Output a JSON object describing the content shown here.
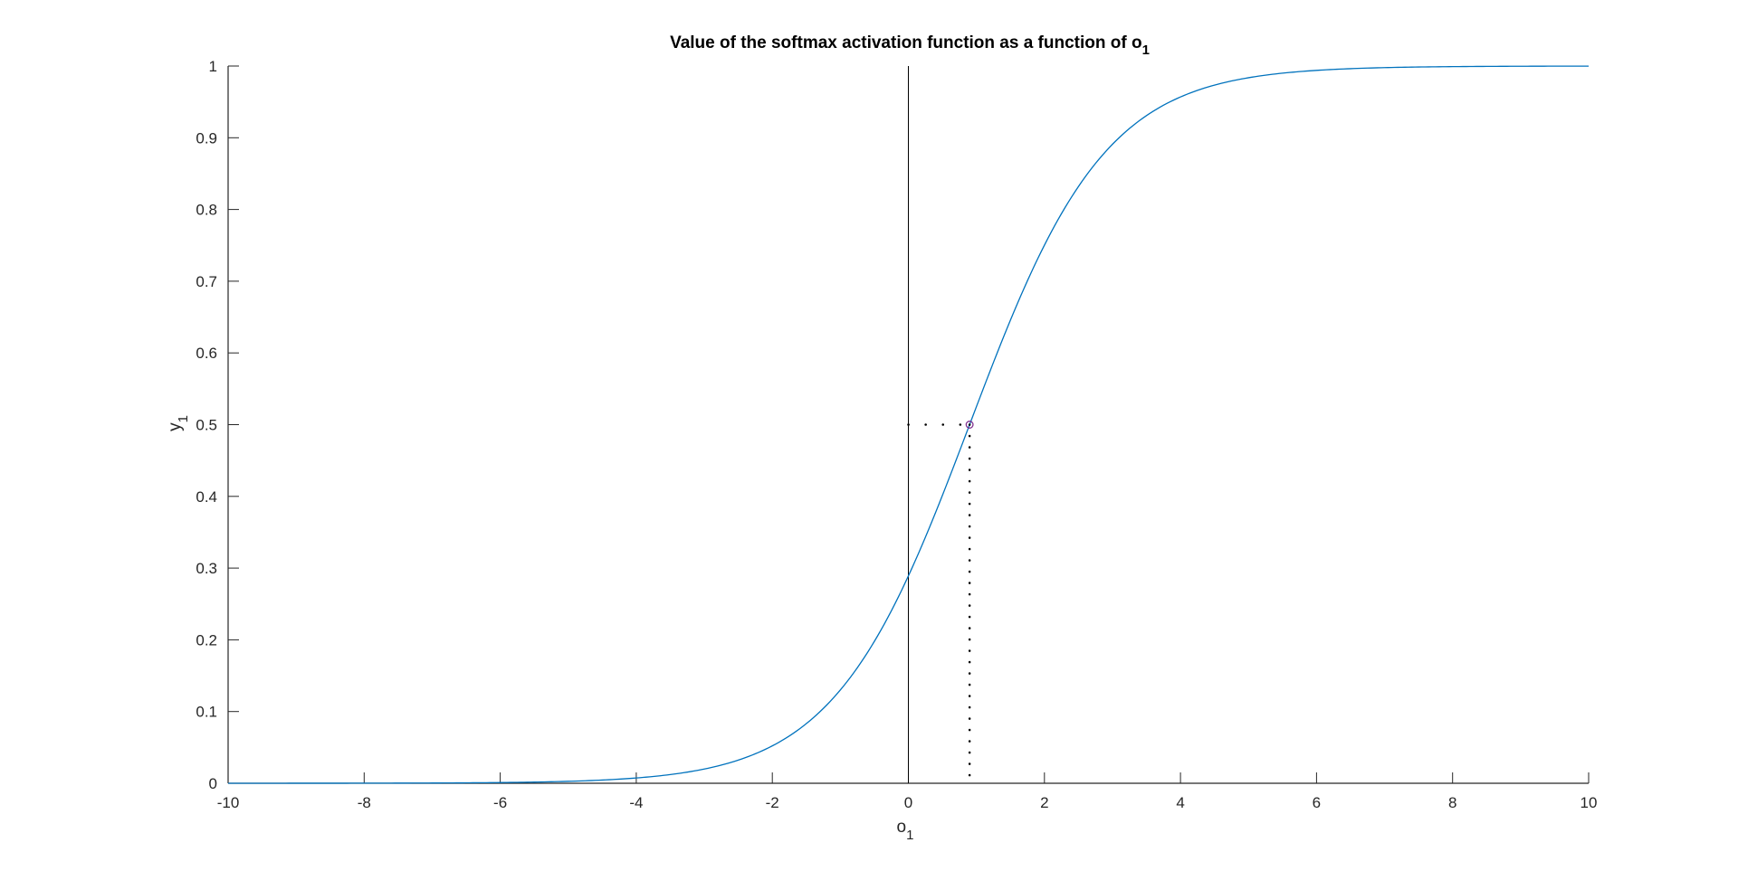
{
  "chart_data": {
    "type": "line",
    "title_main": "Value of the softmax activation function as a function of o",
    "title_sub": "1",
    "xlabel_main": "o",
    "xlabel_sub": "1",
    "ylabel_main": "y",
    "ylabel_sub": "1",
    "xlim": [
      -10,
      10
    ],
    "ylim": [
      0,
      1
    ],
    "xticks": [
      -10,
      -8,
      -6,
      -4,
      -2,
      0,
      2,
      4,
      6,
      8,
      10
    ],
    "yticks": [
      0,
      0.1,
      0.2,
      0.3,
      0.4,
      0.5,
      0.6,
      0.7,
      0.8,
      0.9,
      1
    ],
    "grid": false,
    "curve": {
      "function": "sigmoid",
      "shift": 0.9,
      "x_range": [
        -10,
        10
      ],
      "color": "#0072BD"
    },
    "marker_point": {
      "x": 0.9,
      "y": 0.5,
      "color": "#7E2F8E"
    },
    "guide_lines": {
      "style": "dotted",
      "color": "#000000"
    },
    "vertical_line_x": 0,
    "axis_color": "#262626"
  }
}
